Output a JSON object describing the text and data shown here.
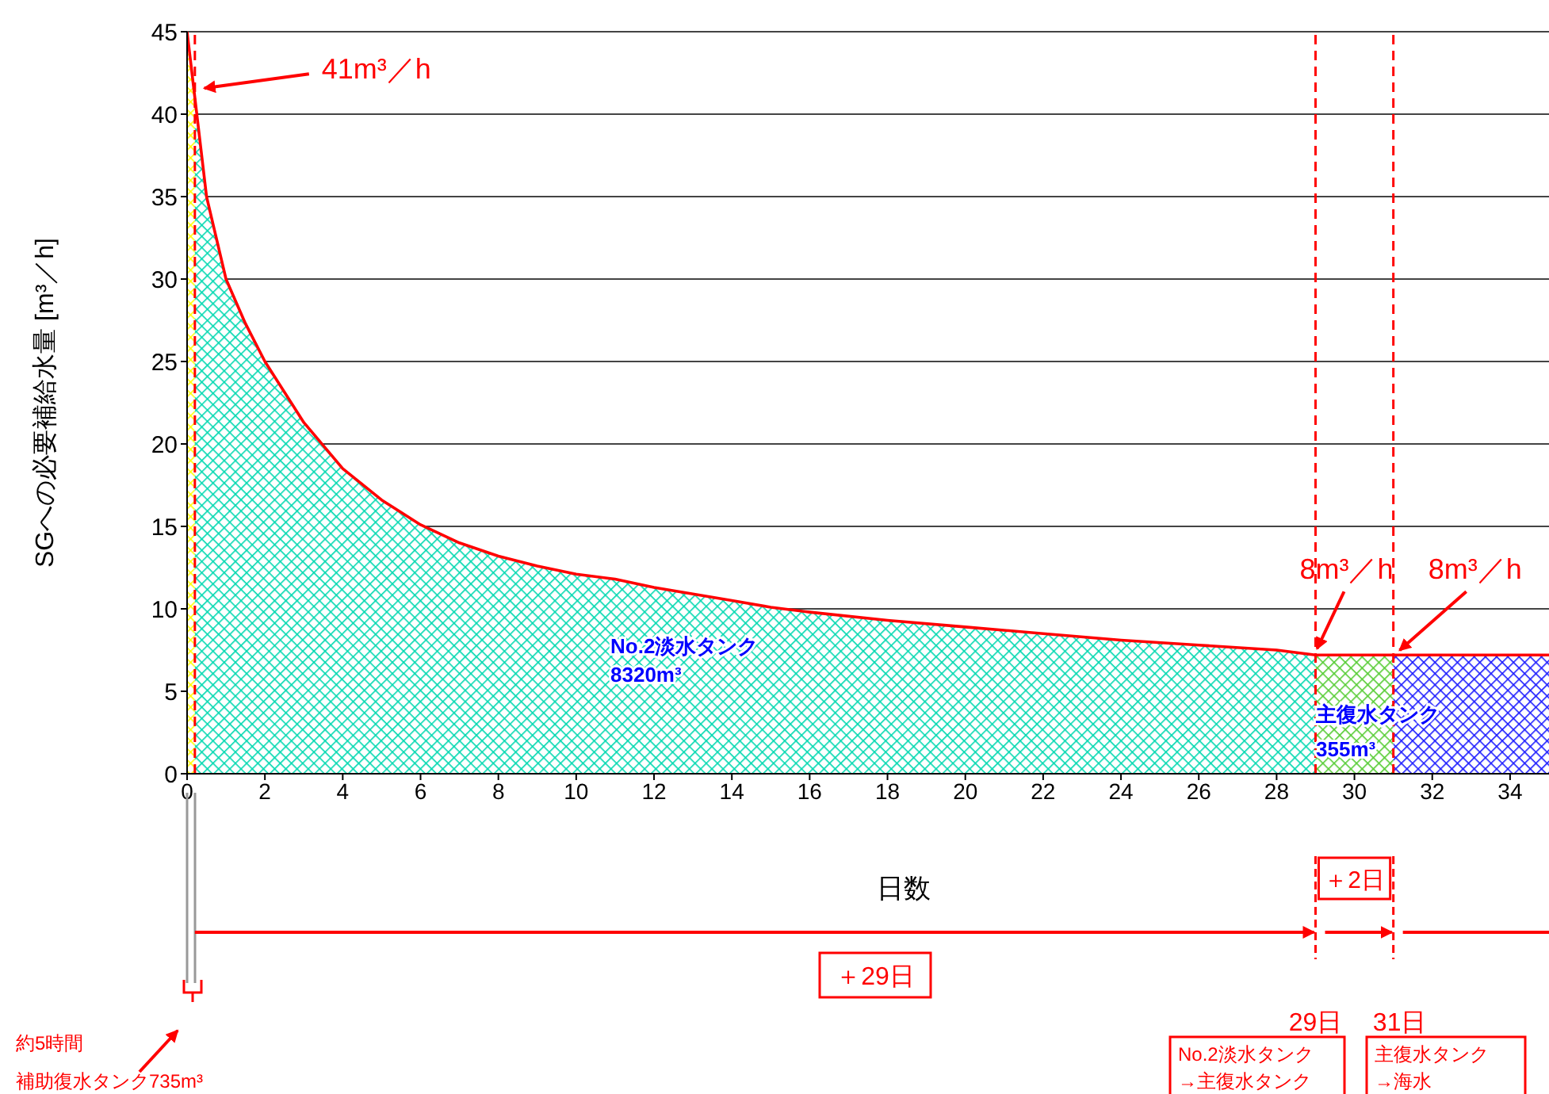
{
  "chart_data": {
    "type": "area",
    "xlabel": "日数",
    "ylabel": "SGへの必要補給水量 [m³／h]",
    "xlim": [
      0,
      35
    ],
    "xticks": [
      0,
      2,
      4,
      6,
      8,
      10,
      12,
      14,
      16,
      18,
      20,
      22,
      24,
      26,
      28,
      30,
      32,
      34
    ],
    "ylim": [
      0,
      45
    ],
    "yticks": [
      0,
      5,
      10,
      15,
      20,
      25,
      30,
      35,
      40,
      45
    ],
    "grid": "y",
    "marker": "none",
    "line_style": "solid",
    "series": [
      {
        "color": "#ffff00",
        "x": [
          0,
          0.2
        ],
        "values": [
          45,
          41
        ]
      },
      {
        "color": "#00d8b0",
        "x": [
          0.2,
          0.5,
          1,
          1.5,
          2,
          3,
          4,
          5,
          6,
          7,
          8,
          9,
          10,
          11,
          12,
          13,
          14,
          15,
          16,
          18,
          20,
          22,
          24,
          26,
          28,
          29
        ],
        "values": [
          41,
          35,
          30,
          27.3,
          25,
          21.3,
          18.5,
          16.6,
          15.1,
          14,
          13.2,
          12.6,
          12.1,
          11.8,
          11.3,
          10.9,
          10.5,
          10.1,
          9.8,
          9.3,
          8.9,
          8.5,
          8.1,
          7.8,
          7.5,
          7.2
        ]
      },
      {
        "color": "#55cc33",
        "x": [
          29,
          31
        ],
        "values": [
          7.2,
          7.2
        ]
      },
      {
        "color": "#1a1aff",
        "x": [
          31,
          35
        ],
        "values": [
          7.2,
          7.2
        ]
      },
      {
        "type": "line",
        "color": "#ff0000",
        "x": [
          0,
          0.2,
          0.5,
          1,
          1.5,
          2,
          3,
          4,
          5,
          6,
          7,
          8,
          9,
          10,
          11,
          12,
          13,
          14,
          15,
          16,
          18,
          20,
          22,
          24,
          26,
          28,
          29,
          31,
          35
        ],
        "values": [
          45,
          41,
          35,
          30,
          27.3,
          25,
          21.3,
          18.5,
          16.6,
          15.1,
          14,
          13.2,
          12.6,
          12.1,
          11.8,
          11.3,
          10.9,
          10.5,
          10.1,
          9.8,
          9.3,
          8.9,
          8.5,
          8.1,
          7.8,
          7.5,
          7.2,
          7.2,
          7.2
        ]
      }
    ],
    "ref_lines": [
      {
        "axis": "x",
        "value": 0.2,
        "color": "#ff0000",
        "line_style": "dashed"
      },
      {
        "axis": "x",
        "value": 29,
        "color": "#ff0000",
        "line_style": "dashed"
      },
      {
        "axis": "x",
        "value": 31,
        "color": "#ff0000",
        "line_style": "dashed"
      }
    ],
    "annotations": [
      {
        "text": "41m³／h",
        "x": 0.2,
        "y": 41
      },
      {
        "text": "8m³／h",
        "x": 29,
        "y": 7.2
      },
      {
        "text": "8m³／h",
        "x": 31,
        "y": 7.2
      },
      "No.2淡水タンク",
      "8320m³",
      "主復水タンク",
      "355m³",
      "＋2日",
      "＋29日",
      "29日",
      "31日",
      "No.2淡水タンク",
      "→主復水タンク",
      "主復水タンク",
      "→海水",
      "約5時間",
      "補助復水タンク735m³"
    ]
  }
}
